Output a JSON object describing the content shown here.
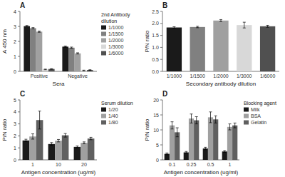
{
  "chart_data": [
    {
      "type": "bar",
      "title": "A",
      "x_label": "Sera",
      "y_label": "A 450 nm",
      "ylim": [
        0,
        4
      ],
      "yticks": [
        0,
        1,
        2,
        3,
        4
      ],
      "categories": [
        "Positive",
        "Negative"
      ],
      "legend_title": "2nd Antibody\ndilution",
      "legend": "right",
      "series": [
        {
          "name": "1/1000",
          "color": "#1a1a1a",
          "values": [
            3.02,
            1.65
          ],
          "errors": [
            0.04,
            0.04
          ]
        },
        {
          "name": "1/1500",
          "color": "#808080",
          "values": [
            2.88,
            1.58
          ],
          "errors": [
            0.04,
            0.04
          ]
        },
        {
          "name": "1/2000",
          "color": "#a0a0a0",
          "values": [
            2.65,
            1.2
          ],
          "errors": [
            0.04,
            0.04
          ]
        },
        {
          "name": "1/3000",
          "color": "#d8d8d8",
          "values": [
            0.13,
            0.06
          ],
          "errors": [
            0.02,
            0.02
          ]
        },
        {
          "name": "1/6000",
          "color": "#505050",
          "values": [
            0.16,
            0.09
          ],
          "errors": [
            0.02,
            0.02
          ]
        }
      ]
    },
    {
      "type": "bar",
      "title": "B",
      "x_label": "Secondary antibody dilution",
      "y_label": "P/N ratio",
      "ylim": [
        0,
        2.5
      ],
      "yticks": [
        {
          "value": 0.0,
          "label": "0.0"
        },
        0.5,
        {
          "value": 1.0,
          "label": "1.0"
        },
        1.5,
        {
          "value": 2.0,
          "label": "2.0"
        },
        2.5
      ],
      "categories": [
        "1/1000",
        "1/1500",
        "1/2000",
        "1/3000",
        "1/6000"
      ],
      "colors": [
        "#1a1a1a",
        "#808080",
        "#a0a0a0",
        "#d8d8d8",
        "#505050"
      ],
      "values": [
        1.83,
        1.85,
        2.12,
        1.93,
        1.88
      ],
      "errors": [
        0.03,
        0.03,
        0.04,
        0.12,
        0.04
      ]
    },
    {
      "type": "bar",
      "title": "C",
      "x_label": "Antigen concentration (ug/ml)",
      "y_label": "P/N ratio",
      "ylim": [
        0,
        5
      ],
      "yticks": [
        0,
        1,
        2,
        3,
        4,
        5
      ],
      "categories": [
        "1",
        "10",
        "20"
      ],
      "legend_title": "Serum dilution",
      "legend": "right",
      "series": [
        {
          "name": "1/20",
          "color": "#1a1a1a",
          "values": [
            1.62,
            1.32,
            1.08
          ],
          "errors": [
            0.1,
            0.12,
            0.08
          ]
        },
        {
          "name": "1/40",
          "color": "#a0a0a0",
          "values": [
            1.95,
            1.6,
            1.42
          ],
          "errors": [
            0.22,
            0.1,
            0.08
          ]
        },
        {
          "name": "1/80",
          "color": "#606060",
          "values": [
            3.32,
            2.05,
            1.78
          ],
          "errors": [
            0.75,
            0.15,
            0.1
          ]
        }
      ]
    },
    {
      "type": "bar",
      "title": "D",
      "x_label": "Antigen concentration (ug/ml)",
      "y_label": "P/N ratio",
      "ylim": [
        0,
        20
      ],
      "yticks": [
        0,
        5,
        10,
        15,
        20
      ],
      "categories": [
        "0.1",
        "0.25",
        "0.5",
        "1"
      ],
      "legend_title": "Blocking agent",
      "legend": "right",
      "series": [
        {
          "name": "Milk",
          "color": "#1a1a1a",
          "values": [
            2.0,
            2.5,
            3.8,
            2.8
          ],
          "errors": [
            0.3,
            0.3,
            0.4,
            0.3
          ]
        },
        {
          "name": "BSA",
          "color": "#a0a0a0",
          "values": [
            11.5,
            13.8,
            14.2,
            11.0
          ],
          "errors": [
            1.2,
            1.5,
            1.8,
            1.0
          ]
        },
        {
          "name": "Gelatin",
          "color": "#606060",
          "values": [
            9.2,
            13.2,
            13.5,
            11.5
          ],
          "errors": [
            1.5,
            1.2,
            1.2,
            0.8
          ]
        }
      ]
    }
  ]
}
